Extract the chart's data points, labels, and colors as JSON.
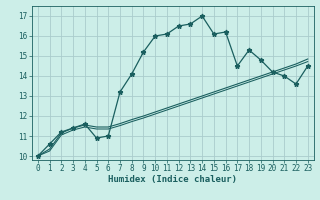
{
  "xlabel": "Humidex (Indice chaleur)",
  "bg_color": "#cceee8",
  "grid_color": "#aacccc",
  "line_color": "#1a5f5f",
  "xlim": [
    -0.5,
    23.5
  ],
  "ylim": [
    9.8,
    17.5
  ],
  "xticks": [
    0,
    1,
    2,
    3,
    4,
    5,
    6,
    7,
    8,
    9,
    10,
    11,
    12,
    13,
    14,
    15,
    16,
    17,
    18,
    19,
    20,
    21,
    22,
    23
  ],
  "yticks": [
    10,
    11,
    12,
    13,
    14,
    15,
    16,
    17
  ],
  "series1_x": [
    0,
    1,
    2,
    3,
    4,
    5,
    6,
    7,
    8,
    9,
    10,
    11,
    12,
    13,
    14,
    15,
    16,
    17,
    18,
    19,
    20,
    21,
    22,
    23
  ],
  "series1_y": [
    10.0,
    10.6,
    11.2,
    11.4,
    11.6,
    10.9,
    11.0,
    13.2,
    14.1,
    15.2,
    16.0,
    16.1,
    16.5,
    16.6,
    17.0,
    16.1,
    16.2,
    14.5,
    15.3,
    14.8,
    14.2,
    14.0,
    13.6,
    14.5
  ],
  "series2_x": [
    0,
    1,
    2,
    3,
    4,
    5,
    6,
    7,
    8,
    9,
    10,
    11,
    12,
    13,
    14,
    15,
    16,
    17,
    18,
    19,
    20,
    21,
    22,
    23
  ],
  "series2_y": [
    10.0,
    10.35,
    11.15,
    11.4,
    11.55,
    11.45,
    11.45,
    11.62,
    11.82,
    12.0,
    12.2,
    12.4,
    12.6,
    12.8,
    13.0,
    13.2,
    13.4,
    13.6,
    13.8,
    14.0,
    14.2,
    14.4,
    14.6,
    14.85
  ],
  "series3_x": [
    0,
    1,
    2,
    3,
    4,
    5,
    6,
    7,
    8,
    9,
    10,
    11,
    12,
    13,
    14,
    15,
    16,
    17,
    18,
    19,
    20,
    21,
    22,
    23
  ],
  "series3_y": [
    10.0,
    10.25,
    11.05,
    11.3,
    11.45,
    11.35,
    11.35,
    11.52,
    11.72,
    11.9,
    12.1,
    12.3,
    12.5,
    12.7,
    12.9,
    13.1,
    13.3,
    13.5,
    13.7,
    13.9,
    14.1,
    14.3,
    14.5,
    14.72
  ],
  "tick_fontsize": 5.5,
  "xlabel_fontsize": 6.5,
  "marker_size": 3.5,
  "lw1": 0.9,
  "lw2": 0.8,
  "lw3": 0.75
}
